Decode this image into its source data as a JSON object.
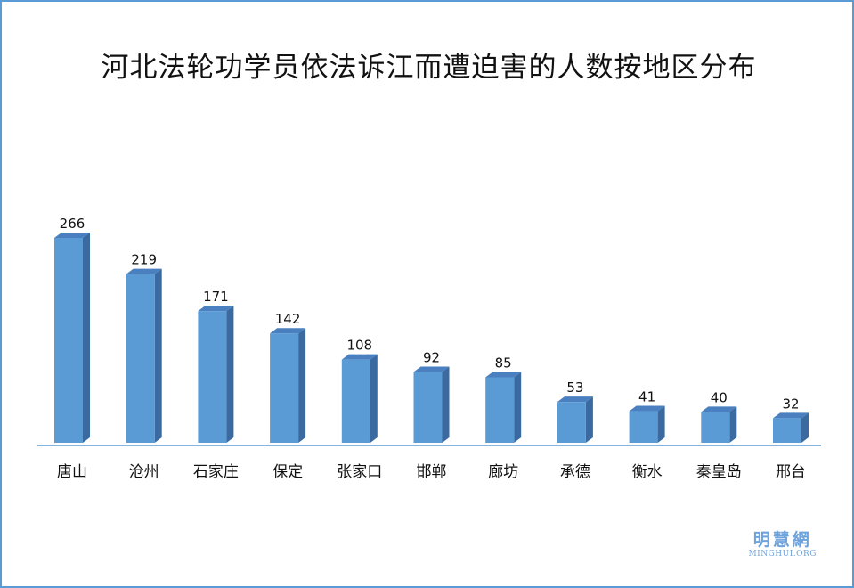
{
  "chart_data": {
    "type": "bar",
    "title": "河北法轮功学员依法诉江而遭迫害的人数按地区分布",
    "categories": [
      "唐山",
      "沧州",
      "石家庄",
      "保定",
      "张家口",
      "邯郸",
      "廊坊",
      "承德",
      "衡水",
      "秦皇岛",
      "邢台"
    ],
    "values": [
      266,
      219,
      171,
      142,
      108,
      92,
      85,
      53,
      41,
      40,
      32
    ],
    "xlabel": "",
    "ylabel": "",
    "ylim": [
      0,
      266
    ],
    "grid": false,
    "legend": "none",
    "colors": {
      "bar_front": "#5b9bd5",
      "bar_side": "#3a6aa0",
      "bar_top": "#4a80bf",
      "baseline": "#5b9bd5",
      "frame": "#5b9bd5"
    }
  },
  "watermark": {
    "name_cn": "明慧網",
    "name_en": "MINGHUI.ORG"
  }
}
